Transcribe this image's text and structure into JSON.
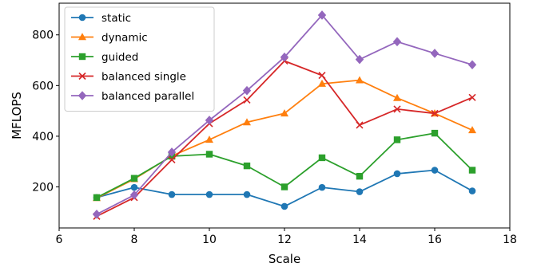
{
  "chart_data": {
    "type": "line",
    "title": "",
    "xlabel": "Scale",
    "ylabel": "MFLOPS",
    "xlim": [
      6,
      18
    ],
    "ylim": [
      38,
      925
    ],
    "xticks": [
      6,
      8,
      10,
      12,
      14,
      16,
      18
    ],
    "yticks": [
      200,
      400,
      600,
      800
    ],
    "grid": false,
    "legend_position": "upper-left",
    "x": [
      7,
      8,
      9,
      10,
      11,
      12,
      13,
      14,
      15,
      16,
      17
    ],
    "series": [
      {
        "name": "static",
        "color": "#1f77b4",
        "marker": "circle",
        "values": [
          158,
          198,
          170,
          170,
          170,
          123,
          198,
          181,
          252,
          266,
          184
        ]
      },
      {
        "name": "dynamic",
        "color": "#ff7f0e",
        "marker": "triangle",
        "values": [
          156,
          231,
          322,
          386,
          455,
          490,
          607,
          621,
          551,
          490,
          424
        ]
      },
      {
        "name": "guided",
        "color": "#2ca02c",
        "marker": "square",
        "values": [
          158,
          234,
          321,
          329,
          283,
          200,
          315,
          242,
          386,
          412,
          266
        ]
      },
      {
        "name": "balanced single",
        "color": "#d62728",
        "marker": "x",
        "values": [
          84,
          158,
          307,
          450,
          543,
          697,
          640,
          444,
          507,
          490,
          553
        ]
      },
      {
        "name": "balanced parallel",
        "color": "#9467bd",
        "marker": "diamond",
        "values": [
          92,
          168,
          337,
          463,
          580,
          712,
          878,
          703,
          773,
          727,
          682
        ]
      }
    ]
  }
}
